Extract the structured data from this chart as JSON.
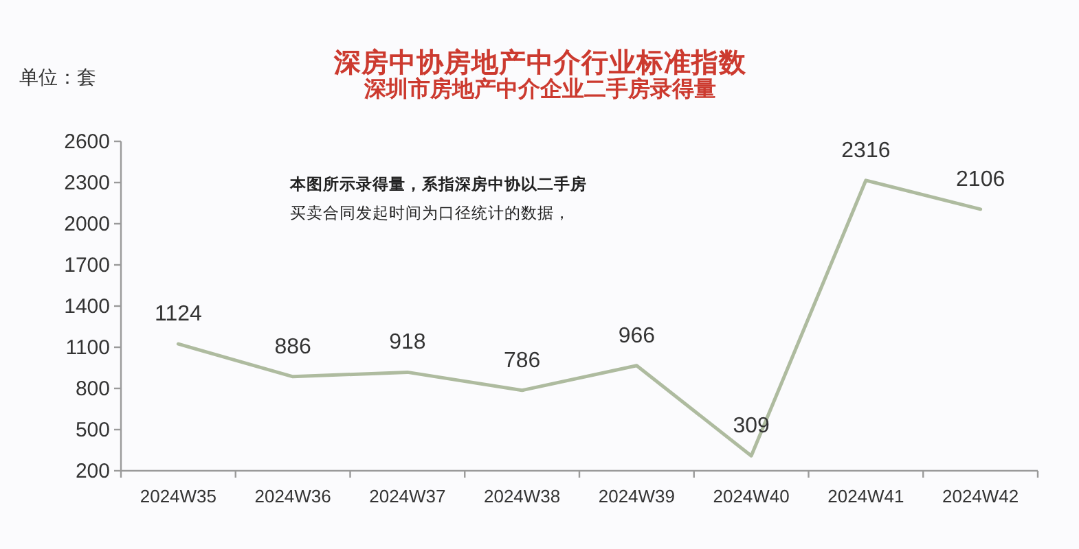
{
  "chart_data": {
    "type": "line",
    "title": "深房中协房地产中介行业标准指数",
    "subtitle": "深圳市房地产中介企业二手房录得量",
    "ylabel": "单位：套",
    "categories": [
      "2024W35",
      "2024W36",
      "2024W37",
      "2024W38",
      "2024W39",
      "2024W40",
      "2024W41",
      "2024W42"
    ],
    "series": [
      {
        "color": "#aebb9f",
        "values": [
          1124,
          886,
          918,
          786,
          966,
          309,
          2316,
          2106
        ]
      }
    ],
    "ylim": [
      200,
      2600
    ],
    "yticks": [
      200,
      500,
      800,
      1100,
      1400,
      1700,
      2000,
      2300,
      2600
    ],
    "data_labels": true,
    "marker": "none",
    "line_style": "solid",
    "annotations": [
      "本图所示录得量，系指深房中协以二手房",
      "买卖合同发起时间为口径统计的数据，"
    ]
  }
}
